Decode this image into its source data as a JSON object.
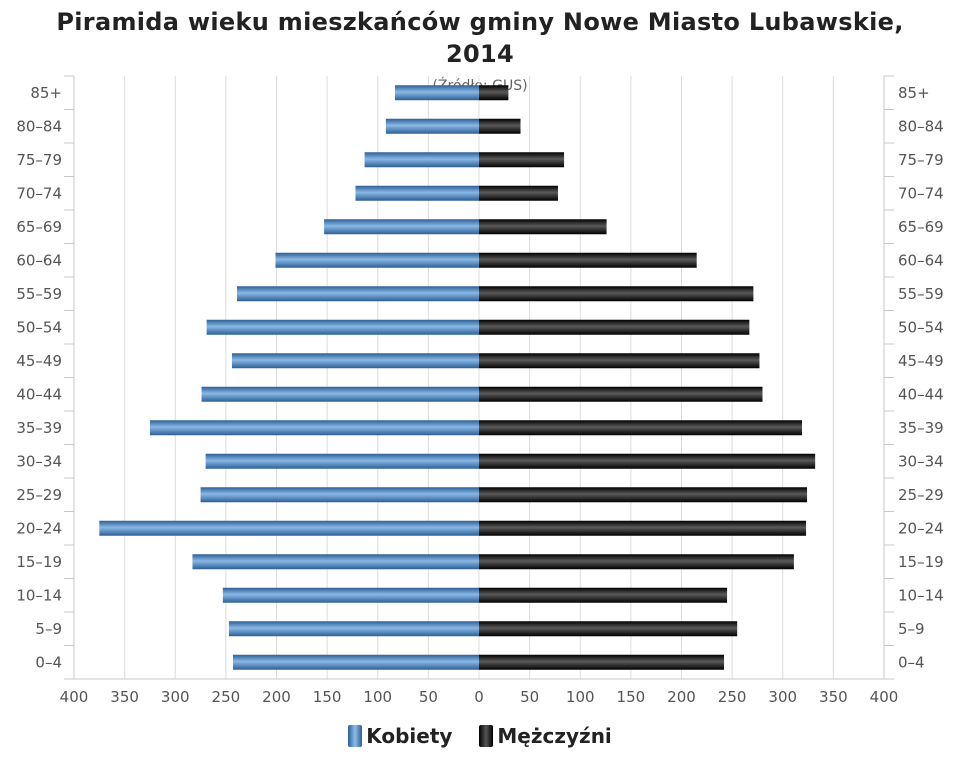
{
  "chart_data": {
    "type": "bar",
    "orientation": "horizontal",
    "layout": "population-pyramid",
    "title": "Piramida wieku mieszkańców gminy Nowe Miasto Lubawskie, 2014",
    "subtitle": "(Źródło: GUS)",
    "categories": [
      "85+",
      "80–84",
      "75–79",
      "70–74",
      "65–69",
      "60–64",
      "55–59",
      "50–54",
      "45–49",
      "40–44",
      "35–39",
      "30–34",
      "25–29",
      "20–24",
      "15–19",
      "10–14",
      "5–9",
      "0–4"
    ],
    "x_ticks": [
      "400",
      "350",
      "300",
      "250",
      "200",
      "150",
      "100",
      "50",
      "0",
      "50",
      "100",
      "150",
      "200",
      "250",
      "300",
      "350",
      "400"
    ],
    "xlim": [
      -400,
      400
    ],
    "grid": true,
    "legend_position": "bottom",
    "series": [
      {
        "name": "Kobiety",
        "color": "#3b77b8",
        "side": "left",
        "values": [
          83,
          92,
          113,
          122,
          153,
          201,
          239,
          269,
          244,
          274,
          325,
          270,
          275,
          375,
          283,
          253,
          247,
          243
        ]
      },
      {
        "name": "Mężczyźni",
        "color": "#111111",
        "side": "right",
        "values": [
          29,
          41,
          84,
          78,
          126,
          215,
          271,
          267,
          277,
          280,
          319,
          332,
          324,
          323,
          311,
          245,
          255,
          242
        ]
      }
    ]
  }
}
